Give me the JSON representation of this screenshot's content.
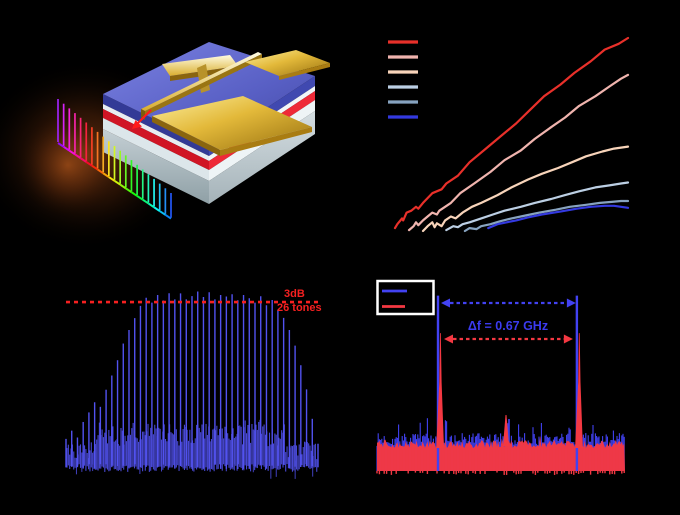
{
  "figure": {
    "background": "#000000"
  },
  "panel_a": {
    "kind": "device-illustration",
    "comb_line_count": 21,
    "comb_hue_start": 275,
    "comb_hue_step": 15.5,
    "arrow_color": "#ff1a1a",
    "chip_colors": {
      "top_face": "#5a61c8",
      "red_layer": "#d81325",
      "white_layer": "#e9eef2",
      "substrate": "#b7c3c9",
      "gold": "#d9ae2e",
      "glow": "#8a4212"
    }
  },
  "chart_data": [
    {
      "panel": "b",
      "type": "line",
      "axis_text_visible": false,
      "units": "percent_of_plot_area",
      "legend": {
        "position": "top-left",
        "labels_visible": false
      },
      "series": [
        {
          "name": "red",
          "color": "#e8302a",
          "points": [
            [
              0,
              2
            ],
            [
              1,
              4
            ],
            [
              3,
              7
            ],
            [
              3.5,
              6
            ],
            [
              5,
              10
            ],
            [
              7,
              11
            ],
            [
              9,
              13
            ],
            [
              10,
              12
            ],
            [
              12,
              15
            ],
            [
              16,
              20
            ],
            [
              20,
              22
            ],
            [
              22,
              25
            ],
            [
              27,
              29
            ],
            [
              32,
              36
            ],
            [
              39,
              43
            ],
            [
              45,
              49
            ],
            [
              52,
              56
            ],
            [
              58,
              63
            ],
            [
              64,
              70
            ],
            [
              71,
              76
            ],
            [
              77,
              82
            ],
            [
              84,
              88
            ],
            [
              90,
              94
            ],
            [
              96,
              97
            ],
            [
              100,
              100
            ]
          ]
        },
        {
          "name": "light-pink",
          "color": "#f0b4ae",
          "points": [
            [
              6,
              1
            ],
            [
              8,
              3
            ],
            [
              9,
              5
            ],
            [
              10,
              3.5
            ],
            [
              12,
              6
            ],
            [
              14,
              8
            ],
            [
              16,
              10
            ],
            [
              18,
              9
            ],
            [
              19,
              11
            ],
            [
              24,
              15
            ],
            [
              28,
              20
            ],
            [
              34,
              25
            ],
            [
              41,
              31
            ],
            [
              47,
              37
            ],
            [
              54,
              42
            ],
            [
              60,
              48
            ],
            [
              67,
              54
            ],
            [
              73,
              59
            ],
            [
              79,
              65
            ],
            [
              86,
              70
            ],
            [
              92,
              75
            ],
            [
              97,
              79
            ],
            [
              100,
              81
            ]
          ]
        },
        {
          "name": "peach",
          "color": "#f8d4ba",
          "points": [
            [
              12,
              0.5
            ],
            [
              14,
              3
            ],
            [
              16,
              5
            ],
            [
              17,
              2.5
            ],
            [
              18,
              4.5
            ],
            [
              20,
              3
            ],
            [
              21.5,
              6
            ],
            [
              24,
              8
            ],
            [
              26,
              7
            ],
            [
              29,
              10
            ],
            [
              33,
              13
            ],
            [
              37,
              15
            ],
            [
              44,
              19
            ],
            [
              50,
              23
            ],
            [
              57,
              27
            ],
            [
              63,
              30
            ],
            [
              70,
              33
            ],
            [
              76,
              36
            ],
            [
              82,
              39
            ],
            [
              89,
              41.5
            ],
            [
              94,
              43
            ],
            [
              100,
              44
            ]
          ]
        },
        {
          "name": "light-steel-blue",
          "color": "#bccfe4",
          "points": [
            [
              22,
              1
            ],
            [
              25,
              3
            ],
            [
              27,
              2.5
            ],
            [
              29,
              4
            ],
            [
              32,
              5
            ],
            [
              37,
              7
            ],
            [
              42,
              9
            ],
            [
              47,
              11
            ],
            [
              54,
              13
            ],
            [
              60,
              15
            ],
            [
              67,
              17
            ],
            [
              73,
              19
            ],
            [
              79,
              21
            ],
            [
              86,
              23
            ],
            [
              92,
              24
            ],
            [
              97,
              25
            ],
            [
              100,
              25.5
            ]
          ]
        },
        {
          "name": "steel-blue",
          "color": "#87a3c0",
          "points": [
            [
              30,
              0.5
            ],
            [
              32,
              2
            ],
            [
              35,
              1.5
            ],
            [
              37,
              3
            ],
            [
              41,
              4
            ],
            [
              45,
              5.5
            ],
            [
              50,
              7
            ],
            [
              56,
              8.5
            ],
            [
              62,
              10
            ],
            [
              69,
              11.5
            ],
            [
              75,
              13
            ],
            [
              82,
              14
            ],
            [
              88,
              15
            ],
            [
              93,
              15.5
            ],
            [
              97,
              16
            ],
            [
              100,
              16
            ]
          ]
        },
        {
          "name": "blue",
          "color": "#3339e0",
          "points": [
            [
              40,
              2
            ],
            [
              44,
              4
            ],
            [
              48,
              5
            ],
            [
              52,
              6
            ],
            [
              57,
              7.5
            ],
            [
              63,
              9
            ],
            [
              71,
              10.5
            ],
            [
              78,
              12
            ],
            [
              84,
              13
            ],
            [
              90,
              13.5
            ],
            [
              94,
              13.5
            ],
            [
              97,
              13
            ],
            [
              100,
              12.5
            ]
          ]
        }
      ]
    },
    {
      "panel": "c",
      "type": "comb-spectrum",
      "axis_text_visible": false,
      "trace_color": "#5252f0",
      "tone_count": 45,
      "teeth_heights_pct": [
        16.9,
        21.3,
        18,
        25.3,
        30.9,
        36.5,
        34.8,
        44.9,
        51.7,
        61.8,
        70.2,
        78.7,
        85.4,
        92.7,
        96.6,
        93.8,
        97.8,
        95.5,
        98.9,
        96.6,
        99.4,
        96.1,
        98.3,
        100,
        97.2,
        99.4,
        95.5,
        98.3,
        96.6,
        98.9,
        94.9,
        97.8,
        96.1,
        93.8,
        97.2,
        92.7,
        95.5,
        89.9,
        85.4,
        78.7,
        70.2,
        59,
        44.9,
        28.1,
        14
      ],
      "threshold_line": {
        "color": "#f52020",
        "y_pct": 94.3,
        "style": "dashed"
      },
      "labels": {
        "line1": "3dB",
        "line2": "26 tones",
        "color": "#f52020"
      }
    },
    {
      "panel": "d",
      "type": "rf-spectrum",
      "axis_text_visible": false,
      "series": [
        {
          "name": "blue-trace",
          "color": "#4242f2"
        },
        {
          "name": "red-trace",
          "color": "#f43842"
        }
      ],
      "peaks": {
        "positions_pct": [
          25,
          81
        ],
        "blue_height_pct": 98,
        "red_height_pct": 77
      },
      "noise": {
        "blue_level_pct": 20,
        "red_level_pct": 16
      },
      "separation": {
        "label": "Δf = 0.67 GHz",
        "label_color": "#3b3bf0",
        "arrow_top_color": "#4242f2",
        "arrow_bottom_color": "#f43842"
      },
      "legend": {
        "border_color": "#ffffff",
        "labels_visible": false
      }
    }
  ]
}
